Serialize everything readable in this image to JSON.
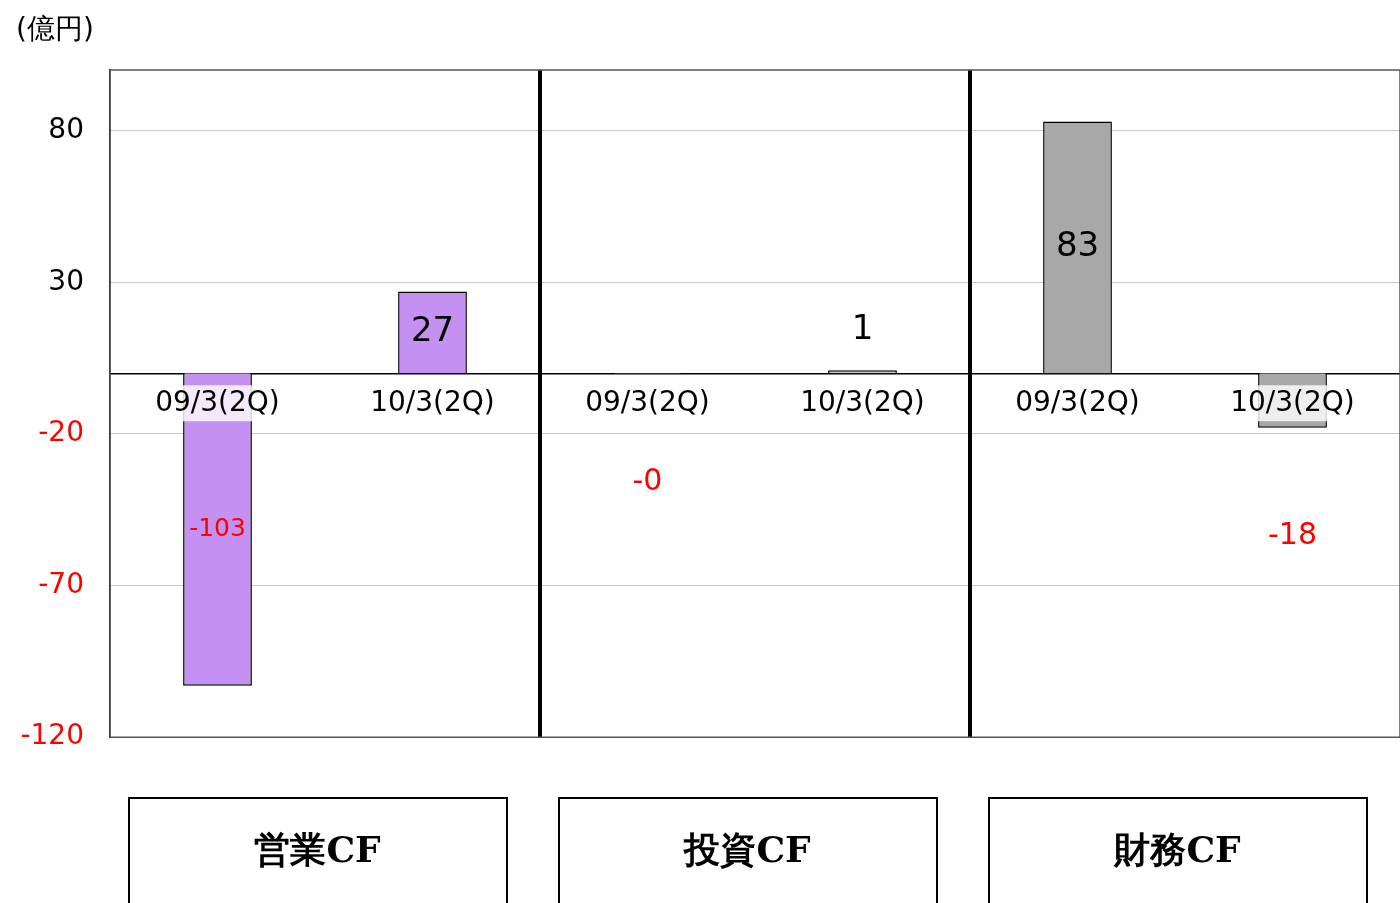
{
  "chart_data": {
    "type": "bar",
    "ylabel": "(億円)",
    "categories": [
      "09/3(2Q)",
      "10/3(2Q)",
      "09/3(2Q)",
      "10/3(2Q)",
      "09/3(2Q)",
      "10/3(2Q)"
    ],
    "values": [
      -103,
      27,
      -0.2,
      1,
      83,
      -18
    ],
    "value_labels": [
      "-103",
      "27",
      "-0",
      "1",
      "83",
      "-18"
    ],
    "colors": [
      "#c490f2",
      "#c490f2",
      "#c8c8c8",
      "#c8c8c8",
      "#a8a8a8",
      "#a8a8a8"
    ],
    "ylim": [
      -120,
      100
    ],
    "yticks": [
      80,
      30,
      -20,
      -70,
      -120
    ],
    "grid": "y",
    "legend": false,
    "annotations": [
      "営業CF",
      "投資CF",
      "財務CF"
    ]
  }
}
